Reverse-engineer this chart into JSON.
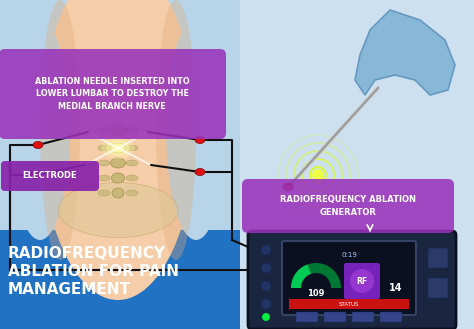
{
  "bg_left_color": "#b8d4e8",
  "bg_right_color": "#cce0f0",
  "bg_bottom_color": "#2272c3",
  "body_skin_color": "#f5cda8",
  "body_shadow_color": "#e0aa7a",
  "body_side_color": "#d4916a",
  "ablation_label_bg": "#9933bb",
  "electrode_label_bg": "#8822aa",
  "generator_label_bg": "#9933bb",
  "label_text_color": "#ffffff",
  "title_text_color": "#ffffff",
  "title_text": "RADIOFREQUENCY\nABLATION FOR PAIN\nMANAGEMENT",
  "ablation_label": "ABLATION NEEDLE INSERTED INTO\nLOWER LUMBAR TO DESTROY THE\nMEDIAL BRANCH NERVE",
  "electrode_label": "ELECTRODE",
  "generator_label": "RADIOFREQUENCY ABLATION\nGENERATOR",
  "wire_color": "#111111",
  "red_connector_color": "#dd1111",
  "glow_color": "#ddff00",
  "device_body_color": "#1a2540",
  "device_screen_color": "#0d1830",
  "spine_glow": "#ffffaa",
  "glove_color": "#88b8d8",
  "needle_color": "#cccccc",
  "vertebra_color": "#c8b878",
  "pelvis_color": "#ddc898"
}
